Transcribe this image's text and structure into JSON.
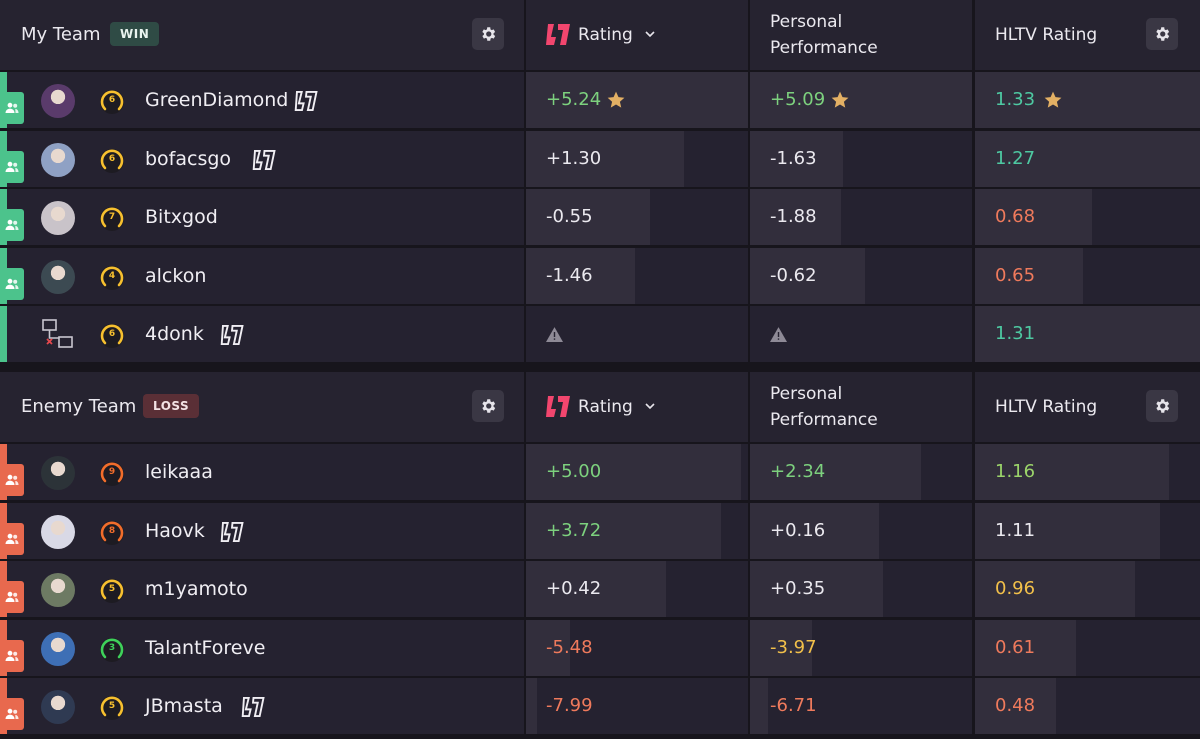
{
  "colors": {
    "accent_pink": "#f2466e",
    "win_green": "#4cc38c",
    "loss_orange": "#e8694e",
    "star_gold": "#e3b064"
  },
  "icons": {
    "gear": "gear-icon",
    "star": "star-icon",
    "warning": "warning-icon",
    "chevron": "chevron-down-icon",
    "party": "party-icon",
    "offline": "network-offline-icon",
    "leetify": "leetify-logo-icon"
  },
  "columns": {
    "rating": "Rating",
    "personal_line1": "Personal",
    "personal_line2": "Performance",
    "hltv": "HLTV Rating"
  },
  "my_team": {
    "title": "My Team",
    "result": "WIN",
    "players": [
      {
        "name": "GreenDiamond",
        "skill": "6",
        "leetify": true,
        "rating": "+5.24",
        "rating_fill": 1.0,
        "rating_star": true,
        "perf": "+5.09",
        "perf_fill": 1.0,
        "perf_star": true,
        "hltv": "1.33",
        "hltv_fill": 1.0,
        "hltv_star": true
      },
      {
        "name": "bofacsgo",
        "skill": "6",
        "leetify": true,
        "rating": "+1.30",
        "rating_fill": 0.71,
        "perf": "-1.63",
        "perf_fill": 0.42,
        "hltv": "1.27",
        "hltv_fill": 1.0
      },
      {
        "name": "Bitxgod",
        "skill": "7",
        "leetify": false,
        "rating": "-0.55",
        "rating_fill": 0.56,
        "perf": "-1.88",
        "perf_fill": 0.41,
        "hltv": "0.68",
        "hltv_fill": 0.52
      },
      {
        "name": "alckon",
        "skill": "4",
        "leetify": false,
        "rating": "-1.46",
        "rating_fill": 0.49,
        "perf": "-0.62",
        "perf_fill": 0.52,
        "hltv": "0.65",
        "hltv_fill": 0.48
      },
      {
        "name": "4donk",
        "skill": "6",
        "leetify": true,
        "offline": true,
        "rating": "",
        "rating_warn": true,
        "rating_fill": 0,
        "perf": "",
        "perf_warn": true,
        "perf_fill": 0,
        "hltv": "1.31",
        "hltv_fill": 1.0
      }
    ]
  },
  "enemy_team": {
    "title": "Enemy Team",
    "result": "LOSS",
    "players": [
      {
        "name": "leikaaa",
        "skill": "9",
        "leetify": false,
        "rating": "+5.00",
        "rating_fill": 0.97,
        "perf": "+2.34",
        "perf_fill": 0.77,
        "hltv": "1.16",
        "hltv_fill": 0.86
      },
      {
        "name": "Haovk",
        "skill": "8",
        "leetify": true,
        "rating": "+3.72",
        "rating_fill": 0.88,
        "perf": "+0.16",
        "perf_fill": 0.58,
        "hltv": "1.11",
        "hltv_fill": 0.82
      },
      {
        "name": "m1yamoto",
        "skill": "5",
        "leetify": false,
        "rating": "+0.42",
        "rating_fill": 0.63,
        "perf": "+0.35",
        "perf_fill": 0.6,
        "hltv": "0.96",
        "hltv_fill": 0.71
      },
      {
        "name": "TalantForeve",
        "skill": "3",
        "leetify": false,
        "rating": "-5.48",
        "rating_fill": 0.2,
        "perf": "-3.97",
        "perf_fill": 0.28,
        "hltv": "0.61",
        "hltv_fill": 0.45
      },
      {
        "name": "JBmasta",
        "skill": "5",
        "leetify": true,
        "rating": "-7.99",
        "rating_fill": 0.05,
        "perf": "-6.71",
        "perf_fill": 0.08,
        "hltv": "0.48",
        "hltv_fill": 0.36
      }
    ]
  }
}
